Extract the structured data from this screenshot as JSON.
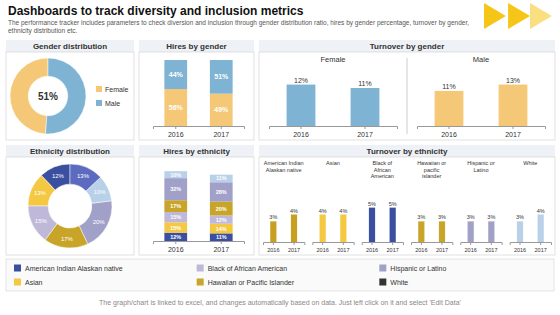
{
  "title": "Dashboards to track diversity and inclusion metrics",
  "subtitle": "The performance tracker includes parameters to check diversion and inclusion through gender distribution ratio, hires by gender percentage, turnover by gender, ethnicity distribution etc.",
  "footer": "The graph/chart is linked to excel, and changes automatically based on data. Just left click on it and select 'Edit Data'",
  "legend_items": [
    {
      "label": "American Indian Alaskan native",
      "color": "#3a4fa0"
    },
    {
      "label": "Black of African American",
      "color": "#c0b8d8"
    },
    {
      "label": "Hispanic or Latino",
      "color": "#a0a0c8"
    },
    {
      "label": "Asian",
      "color": "#f5c842"
    },
    {
      "label": "Hawaiian or Pacific Islander",
      "color": "#c8a428"
    },
    {
      "label": "White",
      "color": "#333333"
    }
  ],
  "chart_data": [
    {
      "type": "pie",
      "title": "Gender distribution",
      "categories": [
        "Female",
        "Male"
      ],
      "values": [
        49,
        51
      ],
      "colors": [
        "#f5c878",
        "#7fb3d3"
      ],
      "legend": "right",
      "annotations": [
        {
          "text": "51%"
        }
      ]
    },
    {
      "type": "bar",
      "title": "Hires by gender",
      "categories": [
        "2016",
        "2017"
      ],
      "stacked": true,
      "data_labels": true,
      "tick_labels": "x",
      "ylim": [
        0,
        100
      ],
      "series": [
        {
          "color": "#f5c878",
          "values": [
            56,
            49
          ],
          "value_labels": [
            "56%",
            "49%"
          ]
        },
        {
          "color": "#7fb3d3",
          "values": [
            44,
            51
          ],
          "value_labels": [
            "44%",
            "51%"
          ]
        }
      ]
    },
    {
      "type": "bar",
      "title": "Turnover by gender",
      "subtitle": "Female",
      "categories": [
        "2016",
        "2017"
      ],
      "values": [
        12,
        11
      ],
      "value_labels": [
        "12%",
        "11%"
      ],
      "color": "#7fb3d3",
      "ylim": [
        0,
        16.8
      ],
      "data_labels": true,
      "tick_labels": "x"
    },
    {
      "type": "bar",
      "subtitle": "Male",
      "categories": [
        "2016",
        "2017"
      ],
      "values": [
        11,
        13
      ],
      "value_labels": [
        "11%",
        "13%"
      ],
      "color": "#f5c878",
      "ylim": [
        0,
        18.2
      ],
      "data_labels": true,
      "tick_labels": "x"
    },
    {
      "type": "pie",
      "title": "Ethnicity distribution",
      "values": [
        12,
        13,
        15,
        17,
        20,
        10,
        13
      ],
      "value_labels": [
        "12%",
        "13%",
        "15%",
        "17%",
        "20%",
        "10%",
        "13%"
      ],
      "colors": [
        "#3a4fa0",
        "#f5c842",
        "#c0b8d8",
        "#c8a428",
        "#a0a0c8",
        "#b8d0e8",
        "#5c6bc0"
      ],
      "data_labels": true
    },
    {
      "type": "bar",
      "title": "Hires by ethnicity",
      "categories": [
        "2016",
        "2017"
      ],
      "stacked": true,
      "data_labels": true,
      "tick_labels": "x",
      "ylim": [
        0,
        110
      ],
      "series": [
        {
          "color": "#3a4fa0",
          "values": [
            12,
            11
          ],
          "value_labels": [
            "12%",
            "11%"
          ]
        },
        {
          "color": "#f5c842",
          "values": [
            15,
            14
          ],
          "value_labels": [
            "15%",
            "14%"
          ]
        },
        {
          "color": "#c0b8d8",
          "values": [
            15,
            12
          ],
          "value_labels": [
            "15%",
            "12%"
          ]
        },
        {
          "color": "#c8a428",
          "values": [
            17,
            20
          ],
          "value_labels": [
            "17%",
            "20%"
          ]
        },
        {
          "color": "#a0a0c8",
          "values": [
            32,
            28
          ],
          "value_labels": [
            "32%",
            "28%"
          ]
        },
        {
          "color": "#b8d0e8",
          "values": [
            10,
            11
          ],
          "value_labels": [
            "10%",
            "11%"
          ]
        }
      ]
    },
    {
      "type": "bar",
      "title": "Turnover by ethnicity",
      "categories": [
        "2016",
        "2017"
      ],
      "ylim": [
        0,
        8
      ],
      "data_labels": true,
      "tick_labels": "x",
      "series": [
        {
          "name": "American Indian\nAlaskan native",
          "color": "#c8a020",
          "values": [
            3,
            4
          ],
          "value_labels": [
            "3%",
            "4%"
          ]
        },
        {
          "name": "Asian",
          "color": "#f5c842",
          "values": [
            4,
            4
          ],
          "value_labels": [
            "4%",
            "4%"
          ]
        },
        {
          "name": "Black of\nAfrican\nAmerican",
          "color": "#3a4fa0",
          "values": [
            5,
            5
          ],
          "value_labels": [
            "5%",
            "5%"
          ]
        },
        {
          "name": "Hawaiian or\npacific\nislander",
          "color": "#c8a428",
          "values": [
            3,
            3
          ],
          "value_labels": [
            "3%",
            "3%"
          ]
        },
        {
          "name": "Hispanic or\nLatino",
          "color": "#a0a0c8",
          "values": [
            3,
            3
          ],
          "value_labels": [
            "3%",
            "3%"
          ]
        },
        {
          "name": "White",
          "color": "#b8d0e8",
          "values": [
            3,
            4
          ],
          "value_labels": [
            "3%",
            "4%"
          ]
        }
      ]
    }
  ]
}
